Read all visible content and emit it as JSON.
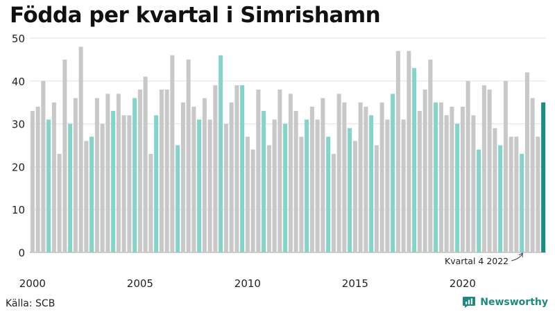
{
  "title": "Födda per kvartal i Simrishamn",
  "source": "Källa: SCB",
  "brand": "Newsworthy",
  "colors": {
    "default": "#c8c8c8",
    "q4": "#85d4c9",
    "latest": "#1a8e84",
    "brand": "#1b8a7f"
  },
  "chart_data": {
    "type": "bar",
    "title": "Födda per kvartal i Simrishamn",
    "xlabel": "",
    "ylabel": "",
    "ylim": [
      0,
      50
    ],
    "yticks": [
      0,
      10,
      20,
      30,
      40,
      50
    ],
    "xtick_labels": [
      "2000",
      "2005",
      "2010",
      "2015",
      "2020"
    ],
    "start_year": 2000,
    "grid": true,
    "annotation": {
      "text": "Kvartal 4 2022"
    },
    "values": [
      33,
      34,
      40,
      31,
      35,
      23,
      45,
      30,
      36,
      48,
      26,
      27,
      36,
      30,
      37,
      33,
      37,
      32,
      32,
      36,
      38,
      41,
      23,
      32,
      38,
      38,
      46,
      25,
      35,
      45,
      34,
      31,
      36,
      31,
      39,
      46,
      30,
      35,
      39,
      39,
      27,
      24,
      38,
      33,
      25,
      31,
      38,
      30,
      37,
      33,
      27,
      31,
      34,
      31,
      36,
      27,
      23,
      37,
      35,
      29,
      26,
      35,
      34,
      32,
      25,
      35,
      31,
      37,
      47,
      31,
      47,
      43,
      33,
      38,
      45,
      35,
      35,
      32,
      34,
      30,
      34,
      40,
      32,
      24,
      39,
      38,
      29,
      25,
      40,
      27,
      27,
      23,
      42,
      36,
      27,
      35
    ]
  }
}
